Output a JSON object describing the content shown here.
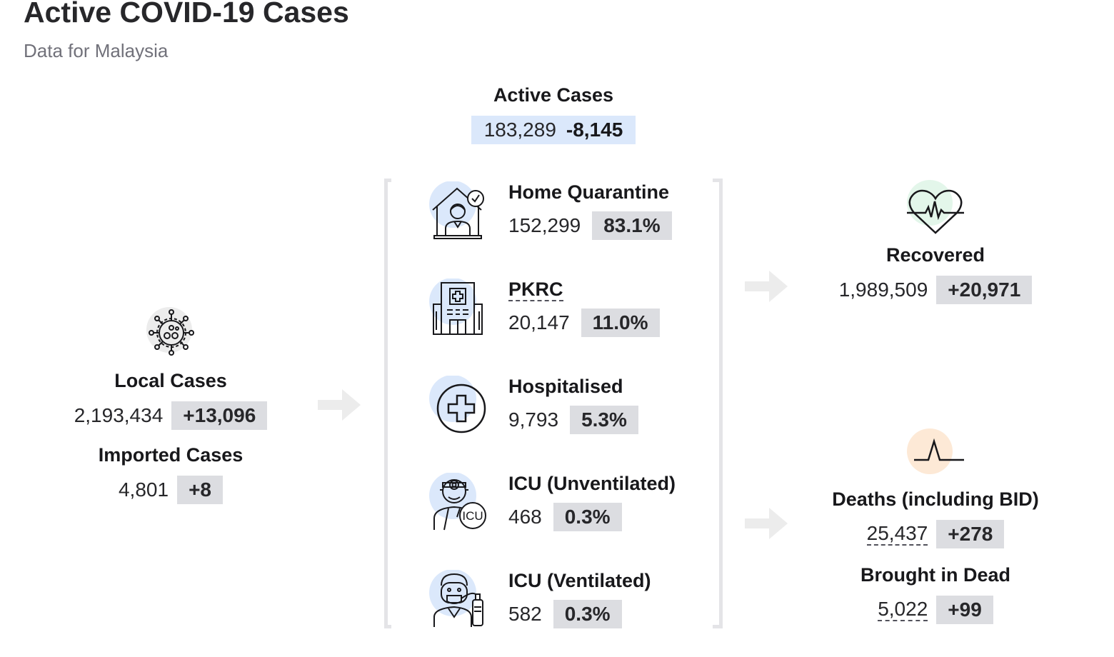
{
  "header": {
    "title": "Active COVID-19 Cases",
    "subtitle": "Data for Malaysia"
  },
  "active": {
    "label": "Active Cases",
    "value": "183,289",
    "delta": "-8,145"
  },
  "local": {
    "label": "Local Cases",
    "value": "2,193,434",
    "delta": "+13,096",
    "icon": "virus-icon"
  },
  "imported": {
    "label": "Imported Cases",
    "value": "4,801",
    "delta": "+8"
  },
  "categories": [
    {
      "label": "Home Quarantine",
      "value": "152,299",
      "percent": "83.1%",
      "icon": "home-quarantine-icon"
    },
    {
      "label": "PKRC",
      "value": "20,147",
      "percent": "11.0%",
      "icon": "pkrc-building-icon"
    },
    {
      "label": "Hospitalised",
      "value": "9,793",
      "percent": "5.3%",
      "icon": "hospital-cross-icon"
    },
    {
      "label": "ICU (Unventilated)",
      "value": "468",
      "percent": "0.3%",
      "icon": "icu-doctor-icon"
    },
    {
      "label": "ICU (Ventilated)",
      "value": "582",
      "percent": "0.3%",
      "icon": "ventilator-patient-icon"
    }
  ],
  "recovered": {
    "label": "Recovered",
    "value": "1,989,509",
    "delta": "+20,971",
    "icon": "heart-pulse-icon"
  },
  "deaths": {
    "label": "Deaths (including BID)",
    "value": "25,437",
    "delta": "+278",
    "icon": "pulse-line-icon"
  },
  "bid": {
    "label": "Brought in Dead",
    "value": "5,022",
    "delta": "+99"
  },
  "colors": {
    "badge_bg": "#dcdde1",
    "active_pill_bg": "#dbe8fb",
    "icon_blue": "#dbe8fb",
    "icon_green": "#e3f6ea",
    "icon_orange": "#fde9d6",
    "bracket": "#e4e4e7",
    "arrow": "#ececec"
  }
}
